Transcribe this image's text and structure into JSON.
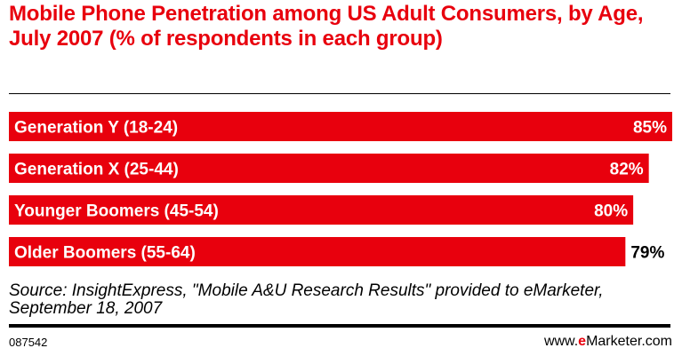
{
  "chart_data": {
    "type": "bar",
    "orientation": "horizontal",
    "title": "Mobile Phone Penetration among US Adult Consumers, by Age, July 2007 (% of respondents in each group)",
    "categories": [
      "Generation Y (18-24)",
      "Generation X (25-44)",
      "Younger Boomers (45-54)",
      "Older Boomers (55-64)"
    ],
    "values": [
      85,
      82,
      80,
      79
    ],
    "value_labels": [
      "85%",
      "82%",
      "80%",
      "79%"
    ],
    "xlim": [
      0,
      85
    ],
    "grid": false,
    "legend": "none",
    "bar_color": "#e8000d"
  },
  "footer": {
    "source": "Source: InsightExpress, \"Mobile A&U Research Results\" provided to eMarketer, September 18, 2007",
    "chart_id": "087542",
    "brand_prefix": "www.",
    "brand_accent": "e",
    "brand_suffix": "Marketer.com"
  }
}
